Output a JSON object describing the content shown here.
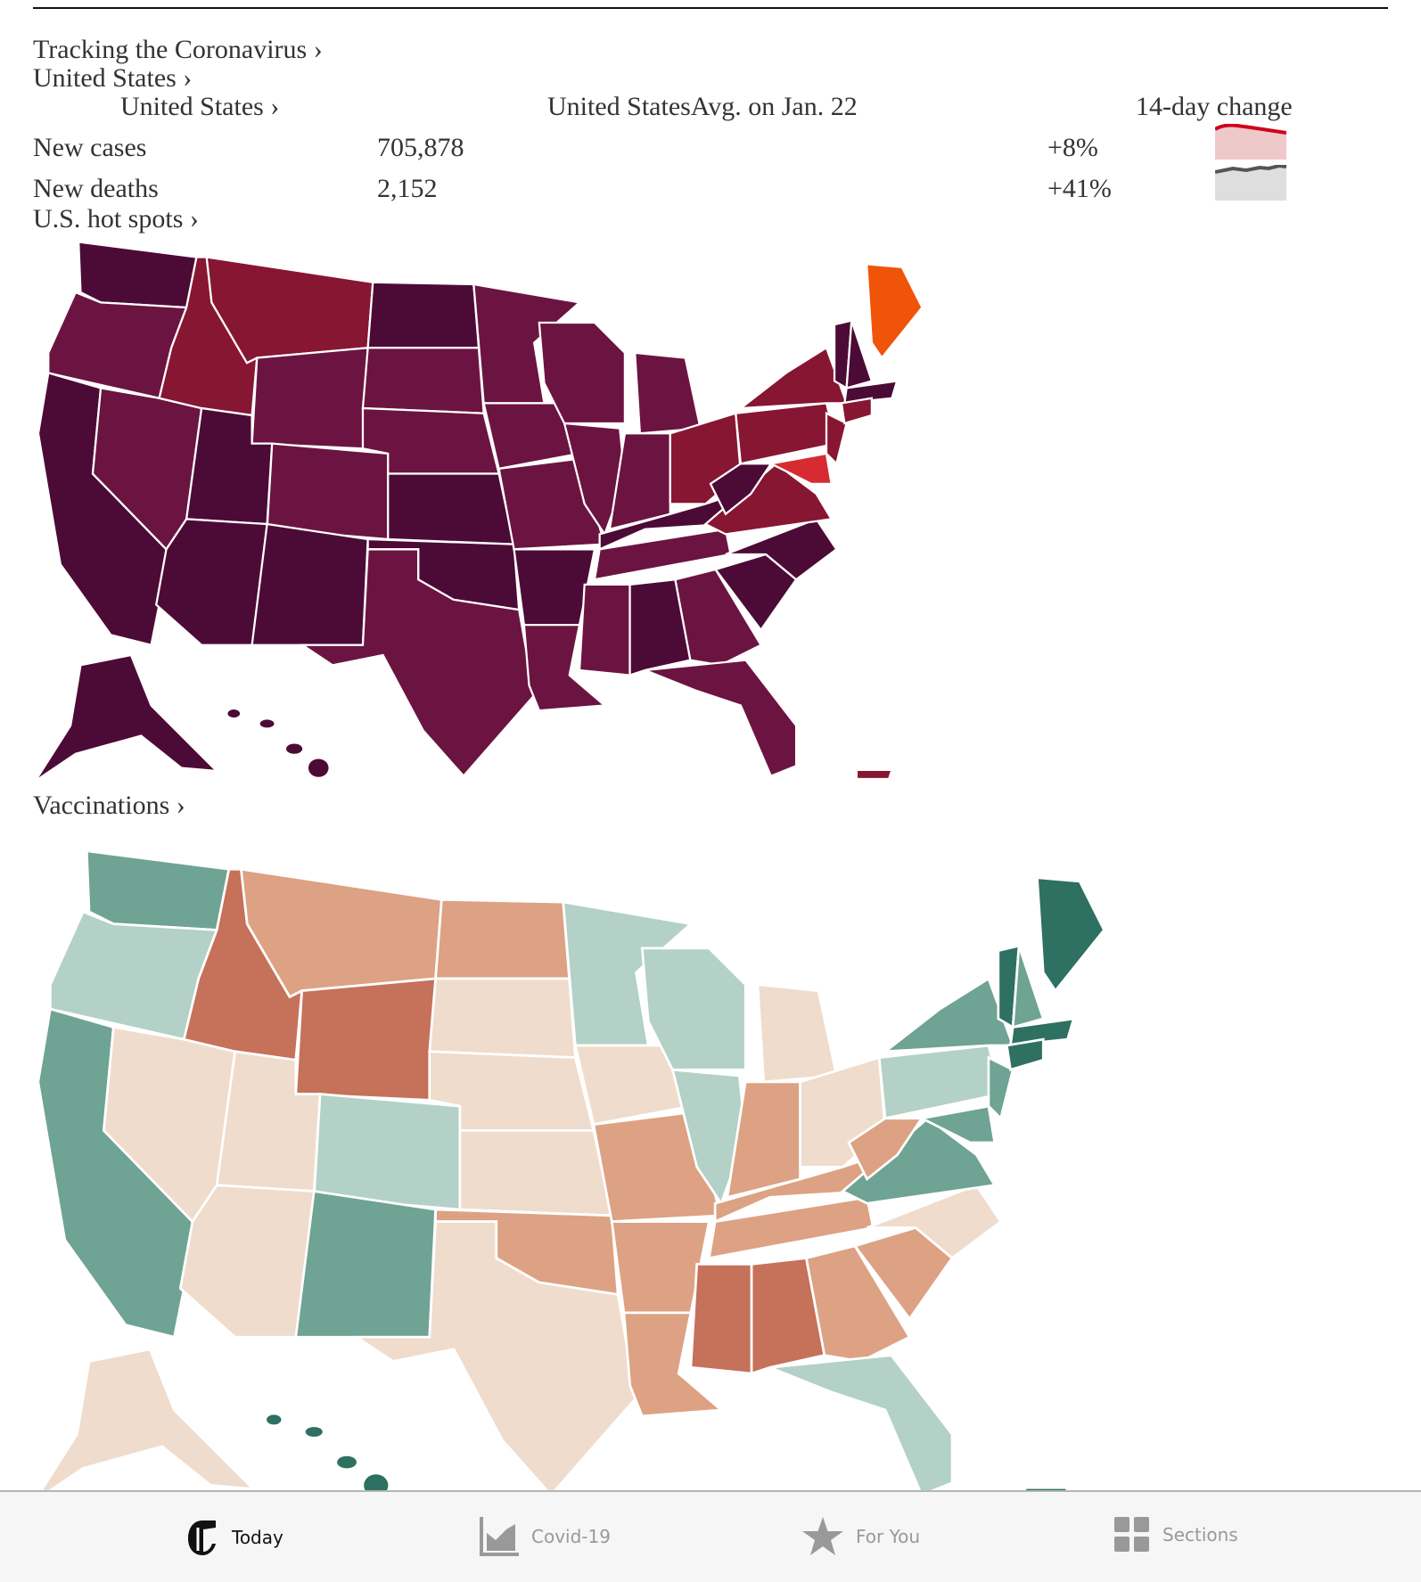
{
  "header": {
    "tracking_link": "Tracking the Coronavirus ›",
    "country_link": "United States ›",
    "table_head": {
      "region": "United States ›",
      "avg": "United StatesAvg. on Jan. 22",
      "change": "14-day change"
    },
    "rows": [
      {
        "label": "New cases",
        "value": "705,878",
        "change": "+8%",
        "color": "#d0021b",
        "fill": "#efc8ca"
      },
      {
        "label": "New deaths",
        "value": "2,152",
        "change": "+41%",
        "color": "#555555",
        "fill": "#dedede"
      }
    ],
    "hotspots_link": "U.S. hot spots ›",
    "vaccinations_link": "Vaccinations ›"
  },
  "hotspots_map": {
    "colors": {
      "d": "#4c0b36",
      "m": "#6c1441",
      "r": "#871633",
      "b": "#d62b31",
      "o": "#f05409"
    },
    "states": {
      "WA": "d",
      "OR": "m",
      "CA": "d",
      "NV": "m",
      "ID": "r",
      "MT": "r",
      "WY": "m",
      "UT": "d",
      "AZ": "d",
      "CO": "m",
      "NM": "d",
      "ND": "d",
      "SD": "m",
      "NE": "m",
      "KS": "d",
      "OK": "d",
      "TX": "m",
      "MN": "m",
      "IA": "m",
      "MO": "m",
      "AR": "d",
      "LA": "m",
      "WI": "m",
      "IL": "m",
      "MI": "m",
      "IN": "m",
      "OH": "r",
      "KY": "d",
      "TN": "m",
      "MS": "m",
      "AL": "d",
      "GA": "m",
      "FL": "m",
      "SC": "d",
      "NC": "d",
      "VA": "r",
      "WV": "d",
      "PA": "r",
      "NY": "r",
      "MD": "b",
      "NJ": "r",
      "VT": "d",
      "NH": "d",
      "ME": "o",
      "MA": "d",
      "CT": "r",
      "AK": "d",
      "HI": "d",
      "PR": "r"
    }
  },
  "vaccination_map": {
    "colors": {
      "dt": "#2e7062",
      "t": "#6fa393",
      "lt": "#b3d1c6",
      "p": "#efdccd",
      "tan": "#dca283",
      "tc": "#c6715a"
    },
    "states": {
      "WA": "t",
      "OR": "lt",
      "CA": "t",
      "NV": "p",
      "ID": "tc",
      "MT": "tan",
      "WY": "tc",
      "UT": "p",
      "AZ": "p",
      "CO": "lt",
      "NM": "t",
      "ND": "tan",
      "SD": "p",
      "NE": "p",
      "KS": "p",
      "OK": "tan",
      "TX": "p",
      "MN": "lt",
      "IA": "p",
      "MO": "tan",
      "AR": "tan",
      "LA": "tan",
      "WI": "lt",
      "IL": "lt",
      "MI": "p",
      "IN": "tan",
      "OH": "p",
      "KY": "tan",
      "TN": "tan",
      "MS": "tc",
      "AL": "tc",
      "GA": "tan",
      "FL": "lt",
      "SC": "tan",
      "NC": "p",
      "VA": "t",
      "WV": "tan",
      "PA": "lt",
      "NY": "t",
      "MD": "t",
      "NJ": "t",
      "VT": "dt",
      "NH": "t",
      "ME": "dt",
      "MA": "dt",
      "CT": "dt",
      "AK": "p",
      "HI": "dt",
      "PR": "dt"
    }
  },
  "tabbar": [
    {
      "label": "Today",
      "icon": "nyt-logo-icon"
    },
    {
      "label": "Covid-19",
      "icon": "chart-icon"
    },
    {
      "label": "For You",
      "icon": "star-icon"
    },
    {
      "label": "Sections",
      "icon": "grid-icon"
    }
  ]
}
